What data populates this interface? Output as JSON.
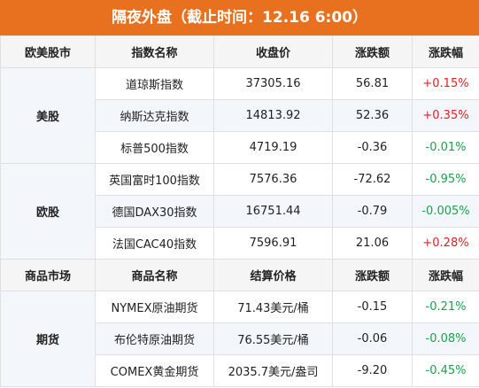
{
  "title": "隔夜外盘（截止时间：12.16 6:00）",
  "colors": {
    "header": "#e8711f",
    "up": "#e02222",
    "down": "#1aa34a"
  },
  "section1": {
    "headers": [
      "欧美股市",
      "指数名称",
      "收盘价",
      "涨跌额",
      "涨跌幅"
    ],
    "groups": [
      {
        "name": "美股",
        "rows": [
          {
            "name": "道琼斯指数",
            "price": "37305.16",
            "change": "56.81",
            "pct": "+0.15%",
            "dir": "up"
          },
          {
            "name": "纳斯达克指数",
            "price": "14813.92",
            "change": "52.36",
            "pct": "+0.35%",
            "dir": "up"
          },
          {
            "name": "标普500指数",
            "price": "4719.19",
            "change": "-0.36",
            "pct": "-0.01%",
            "dir": "down"
          }
        ]
      },
      {
        "name": "欧股",
        "rows": [
          {
            "name": "英国富时100指数",
            "price": "7576.36",
            "change": "-72.62",
            "pct": "-0.95%",
            "dir": "down"
          },
          {
            "name": "德国DAX30指数",
            "price": "16751.44",
            "change": "-0.79",
            "pct": "-0.005%",
            "dir": "down"
          },
          {
            "name": "法国CAC40指数",
            "price": "7596.91",
            "change": "21.06",
            "pct": "+0.28%",
            "dir": "up"
          }
        ]
      }
    ]
  },
  "section2": {
    "headers": [
      "商品市场",
      "商品名称",
      "结算价格",
      "涨跌额",
      "涨跌幅"
    ],
    "groups": [
      {
        "name": "期货",
        "rows": [
          {
            "name": "NYMEX原油期货",
            "price": "71.43美元/桶",
            "change": "-0.15",
            "pct": "-0.21%",
            "dir": "down"
          },
          {
            "name": "布伦特原油期货",
            "price": "76.55美元/桶",
            "change": "-0.06",
            "pct": "-0.08%",
            "dir": "down"
          },
          {
            "name": "COMEX黄金期货",
            "price": "2035.7美元/盎司",
            "change": "-9.20",
            "pct": "-0.45%",
            "dir": "down"
          }
        ]
      }
    ]
  }
}
